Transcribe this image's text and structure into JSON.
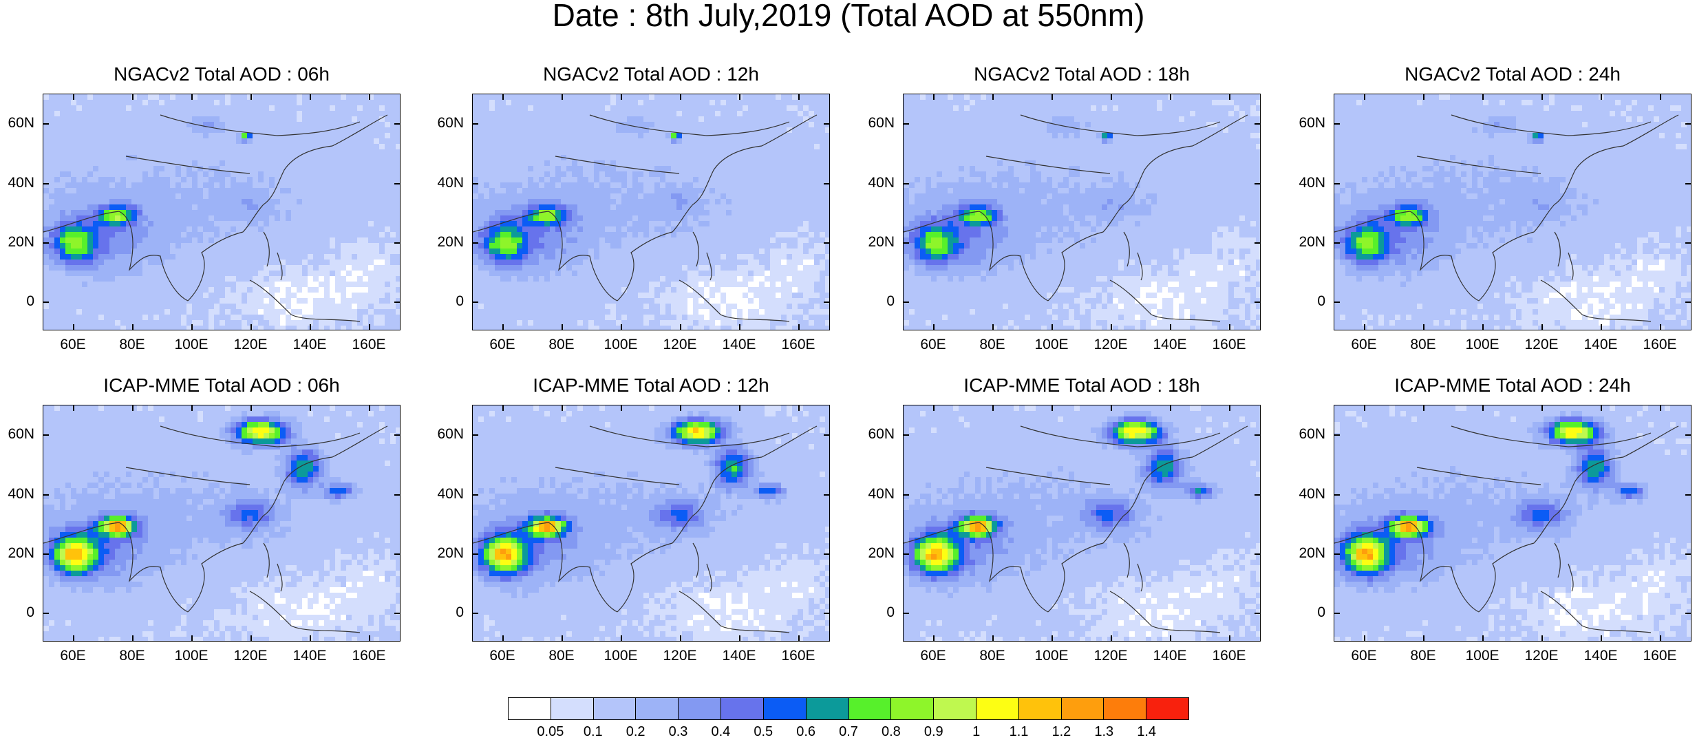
{
  "title": "Date : 8th July,2019 (Total AOD at 550nm)",
  "panels": [
    {
      "model": "NGACv2",
      "title": "NGACv2 Total AOD : 06h"
    },
    {
      "model": "NGACv2",
      "title": "NGACv2 Total AOD : 12h"
    },
    {
      "model": "NGACv2",
      "title": "NGACv2 Total AOD : 18h"
    },
    {
      "model": "NGACv2",
      "title": "NGACv2 Total AOD : 24h"
    },
    {
      "model": "ICAP-MME",
      "title": "ICAP-MME Total AOD : 06h"
    },
    {
      "model": "ICAP-MME",
      "title": "ICAP-MME Total AOD : 12h"
    },
    {
      "model": "ICAP-MME",
      "title": "ICAP-MME Total AOD : 18h"
    },
    {
      "model": "ICAP-MME",
      "title": "ICAP-MME Total AOD : 24h"
    }
  ],
  "axes": {
    "lat_ticks": [
      "60N",
      "40N",
      "20N",
      "0"
    ],
    "lon_ticks": [
      "60E",
      "80E",
      "100E",
      "120E",
      "140E",
      "160E"
    ]
  },
  "colorbar": {
    "labels": [
      "0.05",
      "0.1",
      "0.2",
      "0.3",
      "0.4",
      "0.5",
      "0.6",
      "0.7",
      "0.8",
      "0.9",
      "1",
      "1.1",
      "1.2",
      "1.3",
      "1.4"
    ],
    "colors": [
      "#ffffff",
      "#d4defd",
      "#b4c5fa",
      "#9db3f7",
      "#8399f2",
      "#6773ec",
      "#0b5cf5",
      "#0c9a9a",
      "#57f02b",
      "#8ef52a",
      "#bff84f",
      "#fdfe13",
      "#ffc20b",
      "#fe9e0d",
      "#fd7d0b",
      "#f8210d"
    ]
  }
}
